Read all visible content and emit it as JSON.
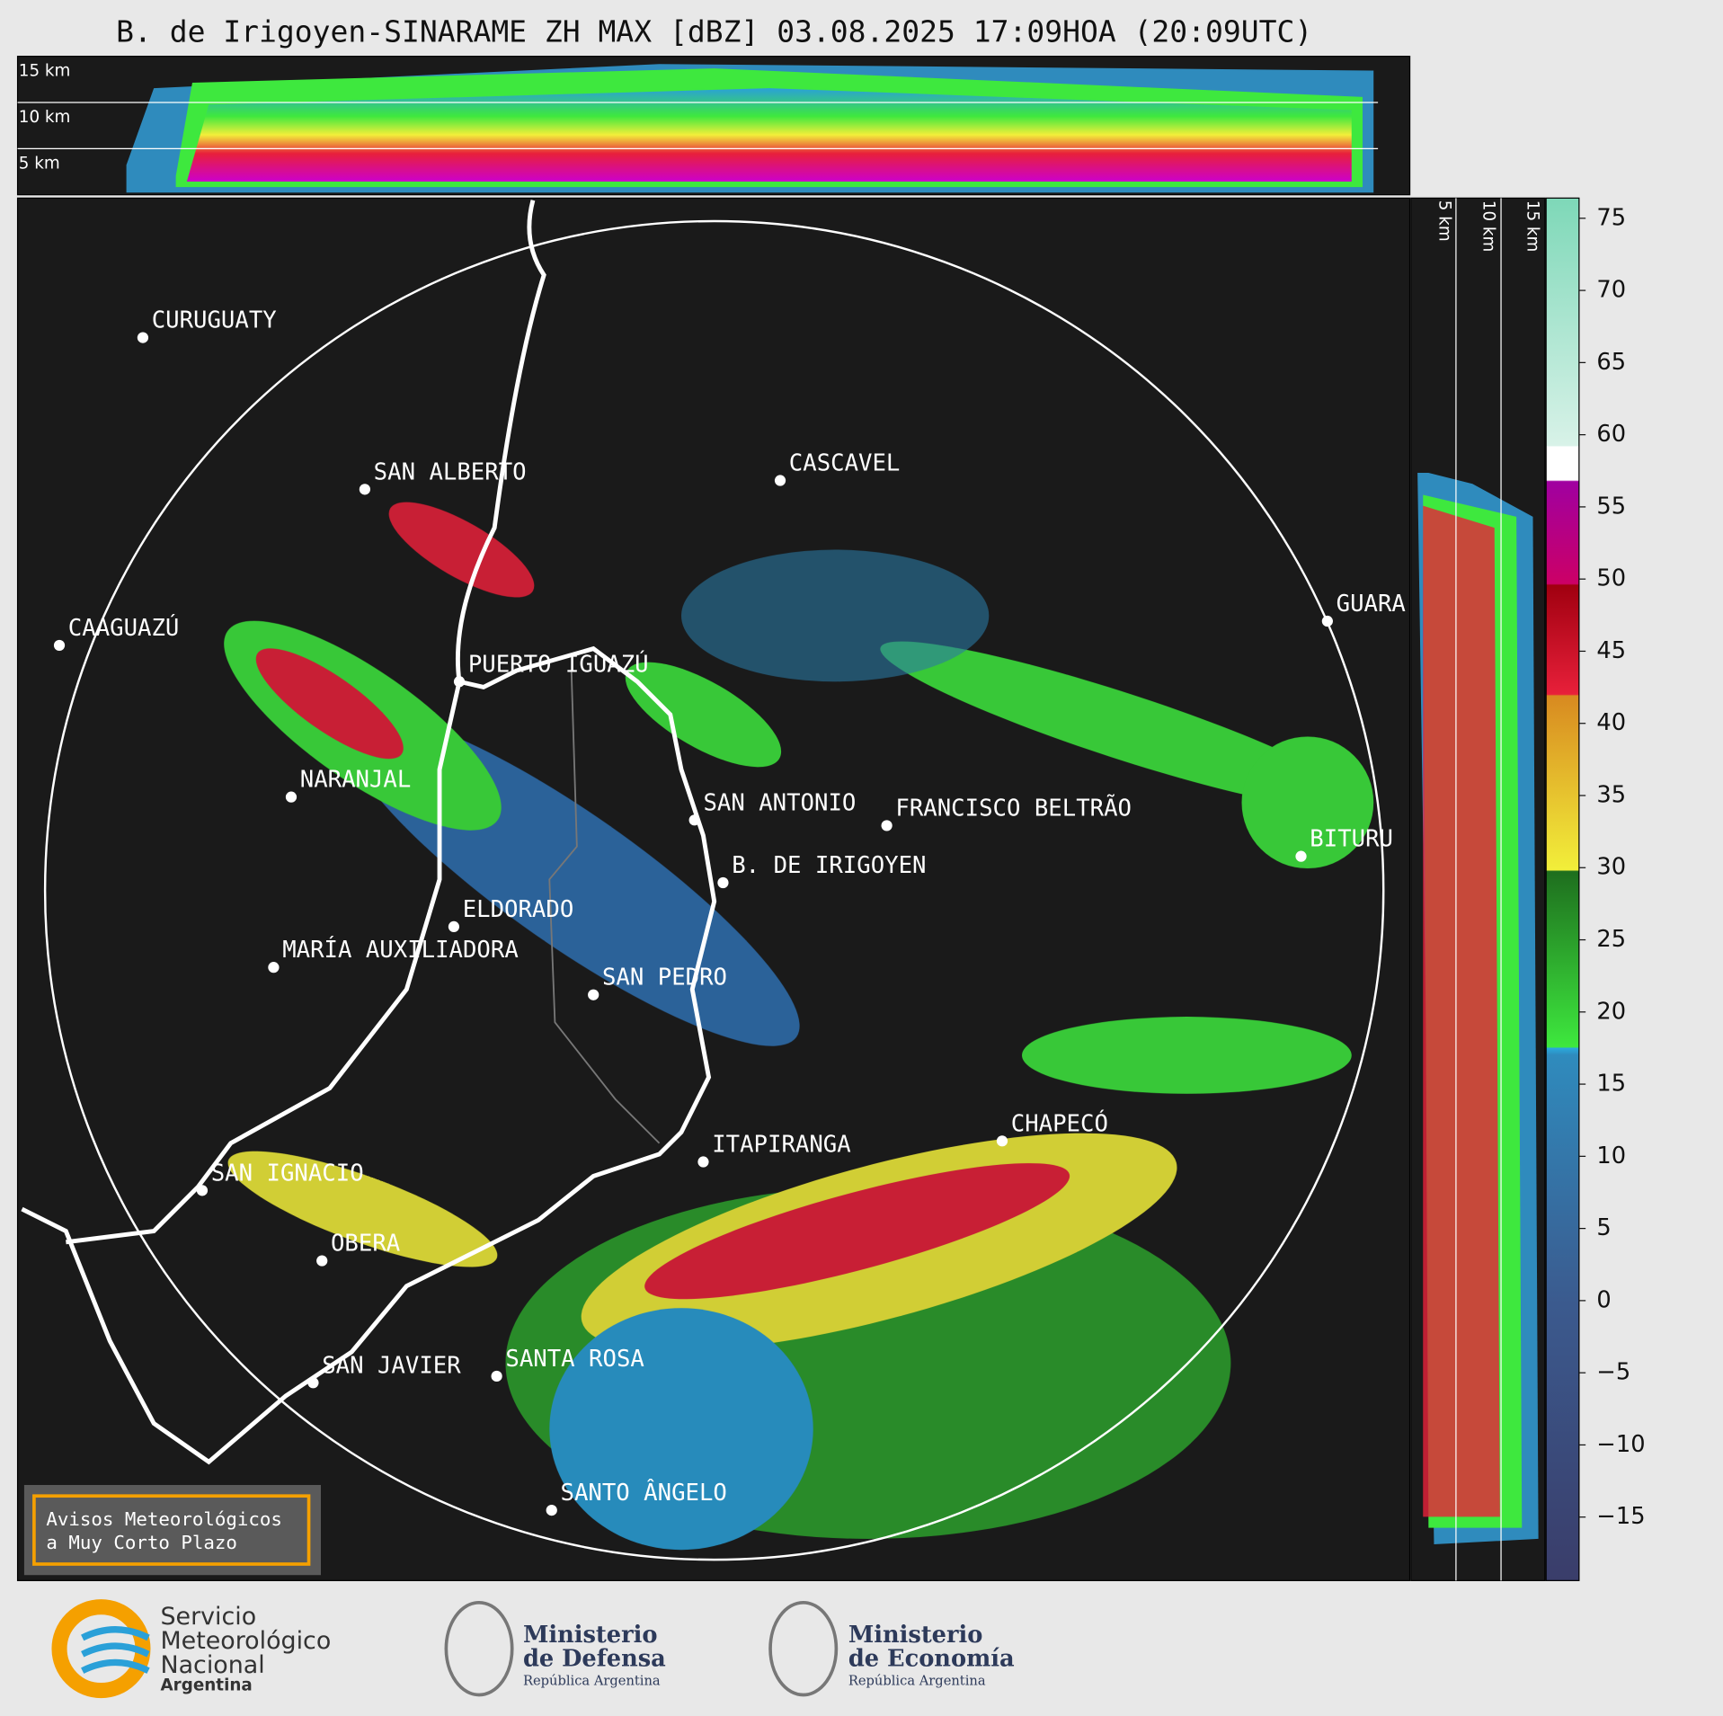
{
  "title": "B. de Irigoyen-SINARAME ZH MAX [dBZ] 03.08.2025 17:09HOA (20:09UTC)",
  "height_labels": {
    "top": [
      "15 km",
      "10 km",
      "5 km"
    ],
    "side": [
      "5 km",
      "10 km",
      "15 km"
    ]
  },
  "places": [
    "CURUGUATY",
    "SAN ALBERTO",
    "CASCAVEL",
    "CAAGUAZÚ",
    "GUARA",
    "PUERTO IGUAZÚ",
    "NARANJAL",
    "SAN ANTONIO",
    "FRANCISCO BELTRÃO",
    "BITURU",
    "B. DE IRIGOYEN",
    "ELDORADO",
    "MARÍA AUXILIADORA",
    "SAN PEDRO",
    "CHAPECÓ",
    "ITAPIRANGA",
    "SAN IGNACIO",
    "OBERA",
    "SAN JAVIER",
    "SANTA ROSA",
    "SANTO ÂNGELO"
  ],
  "colorbar": {
    "lim": [
      -19.4,
      76.4
    ],
    "ticks": [
      75,
      70,
      65,
      60,
      55,
      50,
      45,
      40,
      35,
      30,
      25,
      20,
      15,
      10,
      5,
      0,
      {
        "value": -5,
        "label": "−5"
      },
      {
        "value": -10,
        "label": "−10"
      },
      {
        "value": -15,
        "label": "−15"
      }
    ]
  },
  "notice": [
    "Avisos Meteorológicos",
    "a Muy Corto Plazo"
  ],
  "logos": [
    {
      "lines": [
        "Servicio",
        "Meteorológico",
        "Nacional",
        "Argentina"
      ]
    },
    {
      "lines": [
        "Ministerio",
        "de Defensa",
        "República Argentina"
      ]
    },
    {
      "lines": [
        "Ministerio",
        "de Economía",
        "República Argentina"
      ]
    }
  ]
}
